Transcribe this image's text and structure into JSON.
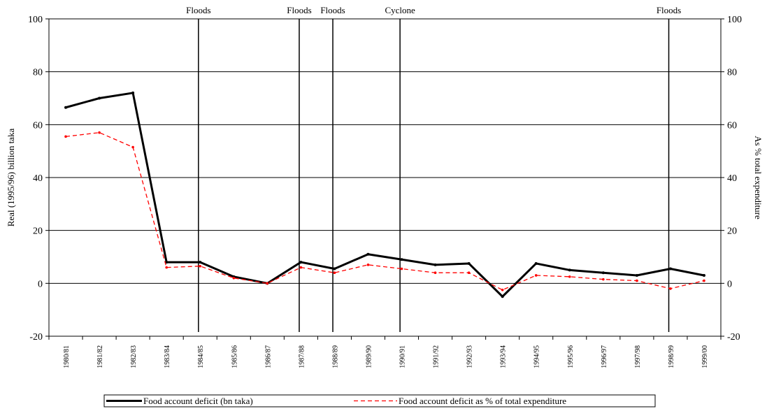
{
  "chart_data": {
    "type": "line",
    "categories": [
      "1980/81",
      "1981/82",
      "1982/83",
      "1983/84",
      "1984/85",
      "1985/86",
      "1986/87",
      "1987/88",
      "1988/89",
      "1989/90",
      "1990/91",
      "1991/92",
      "1992/93",
      "1993/94",
      "1994/95",
      "1995/96",
      "1996/97",
      "1997/98",
      "1998/99",
      "1999/00"
    ],
    "series": [
      {
        "name": "Food account deficit (bn taka)",
        "axis": "left",
        "color": "#000000",
        "style": "solid",
        "values": [
          66.5,
          70,
          72,
          8,
          8,
          2.5,
          0,
          8,
          5.5,
          11,
          9,
          7,
          7.5,
          -5,
          7.5,
          5,
          4,
          3,
          5.5,
          3
        ]
      },
      {
        "name": "Food account deficit as % of total expenditure",
        "axis": "right",
        "color": "#ff0000",
        "style": "dashed",
        "values": [
          55.5,
          57,
          51.5,
          6,
          6.5,
          2,
          0,
          6,
          4,
          7,
          5.5,
          4,
          4,
          -2.5,
          3,
          2.5,
          1.5,
          1,
          -2,
          1
        ]
      }
    ],
    "ylabel": "Real (1995/96) billion taka",
    "ylabel_right": "As % total expenditure",
    "ylim": [
      -20,
      100
    ],
    "y_ticks": [
      -20,
      0,
      20,
      40,
      60,
      80,
      100
    ],
    "y_ticks_right": [
      -20,
      0,
      20,
      40,
      60,
      80,
      100
    ],
    "grid": true,
    "legend_position": "bottom",
    "events": [
      {
        "label": "Floods",
        "category": "1984/85"
      },
      {
        "label": "Floods",
        "category": "1987/88"
      },
      {
        "label": "Floods",
        "category": "1988/89"
      },
      {
        "label": "Cyclone",
        "category": "1990/91"
      },
      {
        "label": "Floods",
        "category": "1998/99"
      }
    ]
  }
}
